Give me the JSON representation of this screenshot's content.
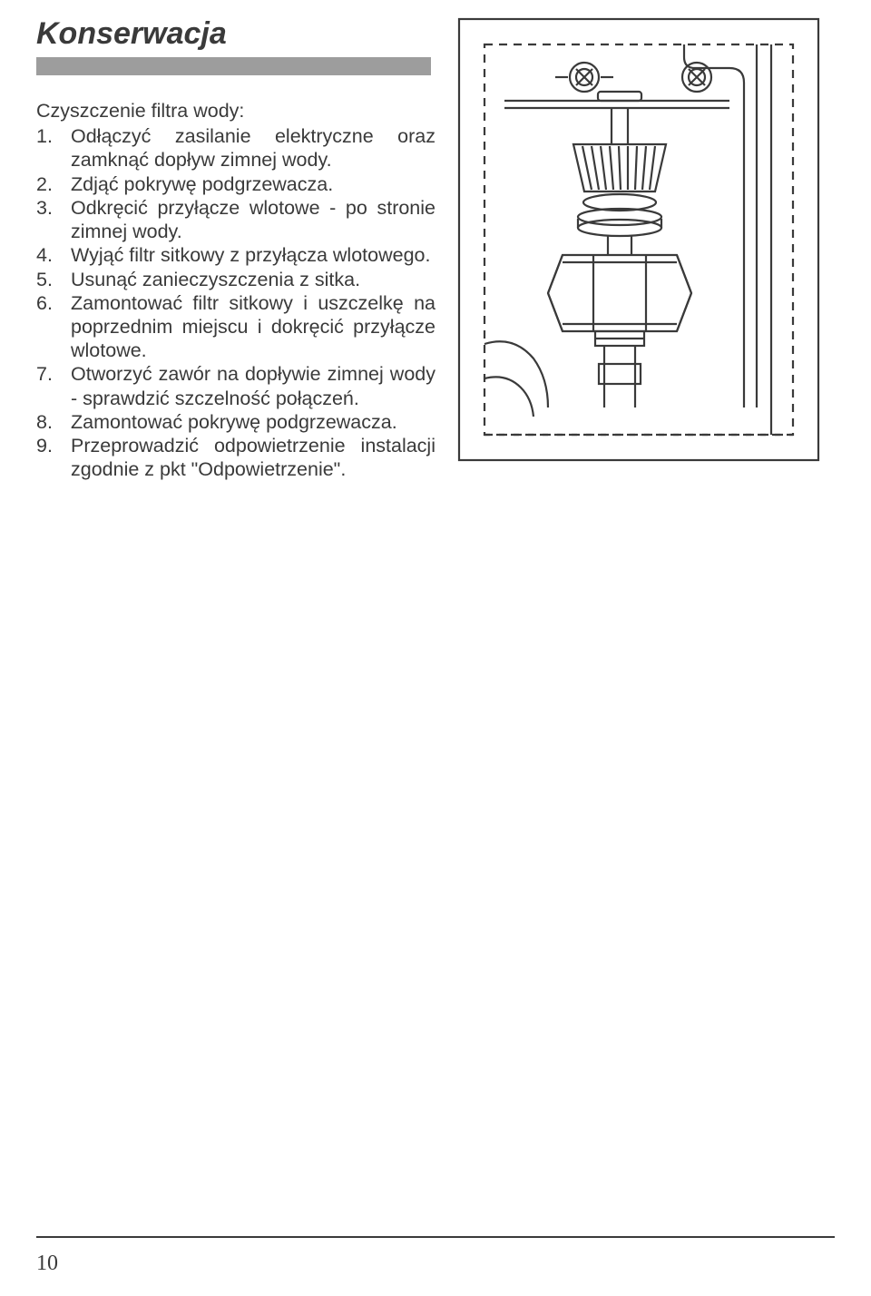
{
  "heading": "Konserwacja",
  "subheading": "Czyszczenie filtra wody:",
  "items": [
    {
      "n": "1.",
      "t": "Odłączyć zasilanie elektryczne oraz zamknąć dopływ zimnej wody."
    },
    {
      "n": "2.",
      "t": "Zdjąć pokrywę podgrzewacza."
    },
    {
      "n": "3.",
      "t": "Odkręcić przyłącze wlotowe - po stronie zimnej wody."
    },
    {
      "n": "4.",
      "t": "Wyjąć filtr sitkowy z przyłącza wlotowego."
    },
    {
      "n": "5.",
      "t": "Usunąć zanieczyszczenia z sitka."
    },
    {
      "n": "6.",
      "t": "Zamontować filtr sitkowy i uszczelkę na poprzednim miejscu i dokręcić przyłącze wlotowe."
    },
    {
      "n": "7.",
      "t": "Otworzyć zawór na dopływie zimnej wody - sprawdzić szczelność połączeń."
    },
    {
      "n": "8.",
      "t": "Zamontować pokrywę podgrzewacza."
    },
    {
      "n": "9.",
      "t": "Przeprowadzić odpowietrzenie instalacji zgodnie z pkt \"Odpowietrzenie\"."
    }
  ],
  "page_number": "10",
  "figure": {
    "stroke": "#3a3a3a",
    "stroke_width": 2.2,
    "dash": "9 7",
    "bg": "#ffffff"
  }
}
